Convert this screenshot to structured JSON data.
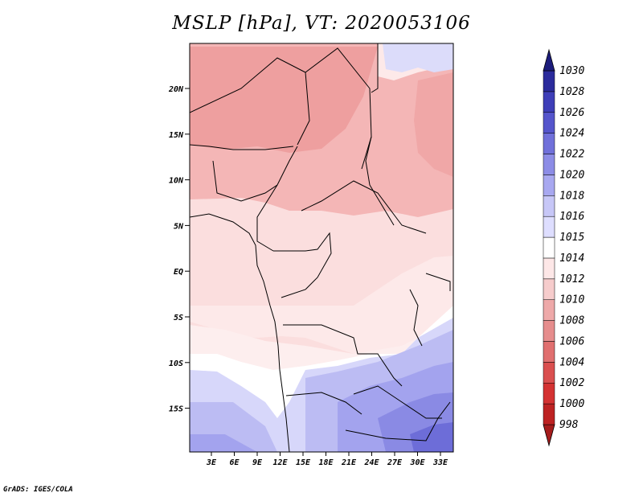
{
  "title": "MSLP [hPa], VT: 2020053106",
  "credit": "GrADS: IGES/COLA",
  "map": {
    "lat_ticks": [
      "20N",
      "15N",
      "10N",
      "5N",
      "EQ",
      "5S",
      "10S",
      "15S"
    ],
    "lon_ticks": [
      "3E",
      "6E",
      "9E",
      "12E",
      "15E",
      "18E",
      "21E",
      "24E",
      "27E",
      "30E",
      "33E"
    ]
  },
  "colorbar": {
    "levels": [
      "998",
      "1000",
      "1002",
      "1004",
      "1006",
      "1008",
      "1010",
      "1012",
      "1014",
      "1015",
      "1016",
      "1018",
      "1020",
      "1022",
      "1024",
      "1026",
      "1028",
      "1030"
    ],
    "colors": [
      "#a51c1c",
      "#bd2222",
      "#d43232",
      "#da4f4f",
      "#e06f6f",
      "#e68d8d",
      "#eea9a9",
      "#f6cccc",
      "#fde7e7",
      "#ffffff",
      "#dedeff",
      "#c7c7f7",
      "#a8a8f0",
      "#8c8ce6",
      "#7070da",
      "#5555cc",
      "#3e3eb8",
      "#2b2b9c",
      "#1c1c7c"
    ]
  }
}
